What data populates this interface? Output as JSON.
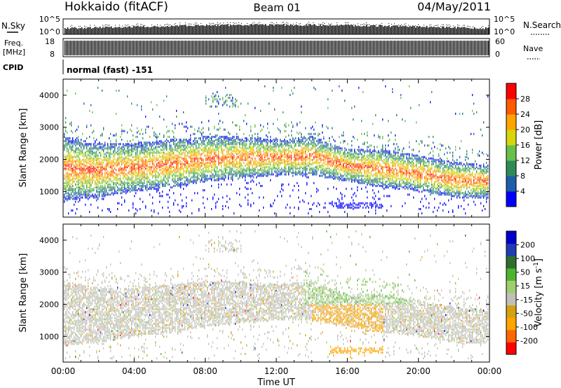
{
  "header": {
    "site_title": "Hokkaido (fitACF)",
    "beam": "Beam 01",
    "date": "04/May/2011"
  },
  "top_panels": {
    "nsky_label": "N.Sky",
    "nsky_ticks": [
      "10^5",
      "10^0"
    ],
    "nsearch_label": "N.Search",
    "nsearch_ticks": [
      "10^5",
      "10^0"
    ],
    "freq_label_1": "Freq.",
    "freq_label_2": "[MHz]",
    "freq_ticks": [
      "18",
      "8"
    ],
    "nave_label": "Nave",
    "nave_ticks": [
      "60",
      "0"
    ],
    "cpid_label": "CPID",
    "cpid_text": "normal (fast) -151"
  },
  "colors": {
    "power": [
      "#0000ff",
      "#1c5ea8",
      "#2e8b57",
      "#66c04a",
      "#d6d60a",
      "#ffa500",
      "#ff5a00",
      "#ff0000"
    ],
    "velocity": [
      "#ff0000",
      "#ff6600",
      "#ffa500",
      "#d4a010",
      "#c0c0b8",
      "#9fce6f",
      "#4bb52e",
      "#2e6e2e",
      "#1f3cb4",
      "#0000cc"
    ]
  },
  "chart_data": [
    {
      "type": "heatmap",
      "title": "",
      "xlabel": "",
      "ylabel": "Slant Range [km]",
      "xlim": [
        "00:00",
        "00:00"
      ],
      "ylim": [
        200,
        4500
      ],
      "y_ticks": [
        1000,
        2000,
        3000,
        4000
      ],
      "y_tick_labels": [
        "1000",
        "2000",
        "3000",
        "4000"
      ],
      "colorbar": {
        "label": "Power [dB]",
        "ticks": [
          "4",
          "8",
          "12",
          "16",
          "20",
          "24",
          "28"
        ],
        "range": [
          0,
          32
        ]
      },
      "echo_band": {
        "hours": [
          0,
          2,
          4,
          6,
          8,
          10,
          12,
          14,
          16,
          18,
          20,
          22,
          24
        ],
        "lower_km": [
          700,
          800,
          1000,
          1100,
          1300,
          1400,
          1500,
          1500,
          1300,
          1100,
          1000,
          800,
          800
        ],
        "upper_km": [
          2700,
          2500,
          2500,
          2600,
          2700,
          2700,
          2600,
          2700,
          2300,
          2300,
          2100,
          1900,
          1800
        ]
      }
    },
    {
      "type": "heatmap",
      "title": "",
      "xlabel": "Time UT",
      "ylabel": "Slant Range [km]",
      "xlim": [
        "00:00",
        "00:00"
      ],
      "x_ticks": [
        "00:00",
        "04:00",
        "08:00",
        "12:00",
        "16:00",
        "20:00",
        "00:00"
      ],
      "ylim": [
        200,
        4500
      ],
      "y_ticks": [
        1000,
        2000,
        3000,
        4000
      ],
      "y_tick_labels": [
        "1000",
        "2000",
        "3000",
        "4000"
      ],
      "colorbar": {
        "label": "Velocity [m s",
        "label_sup": "-1",
        "label_end": "]",
        "ticks": [
          "200",
          "100",
          "50",
          "15",
          "-15",
          "-50",
          "-100",
          "-200"
        ],
        "range": [
          -250,
          250
        ]
      },
      "echo_band": {
        "hours": [
          0,
          2,
          4,
          6,
          8,
          10,
          12,
          14,
          16,
          18,
          20,
          22,
          24
        ],
        "lower_km": [
          700,
          800,
          1000,
          1100,
          1300,
          1400,
          1500,
          1500,
          1300,
          1100,
          1000,
          800,
          800
        ],
        "upper_km": [
          2700,
          2500,
          2500,
          2600,
          2700,
          2700,
          2600,
          2700,
          2300,
          2300,
          2100,
          1900,
          1800
        ]
      }
    }
  ]
}
